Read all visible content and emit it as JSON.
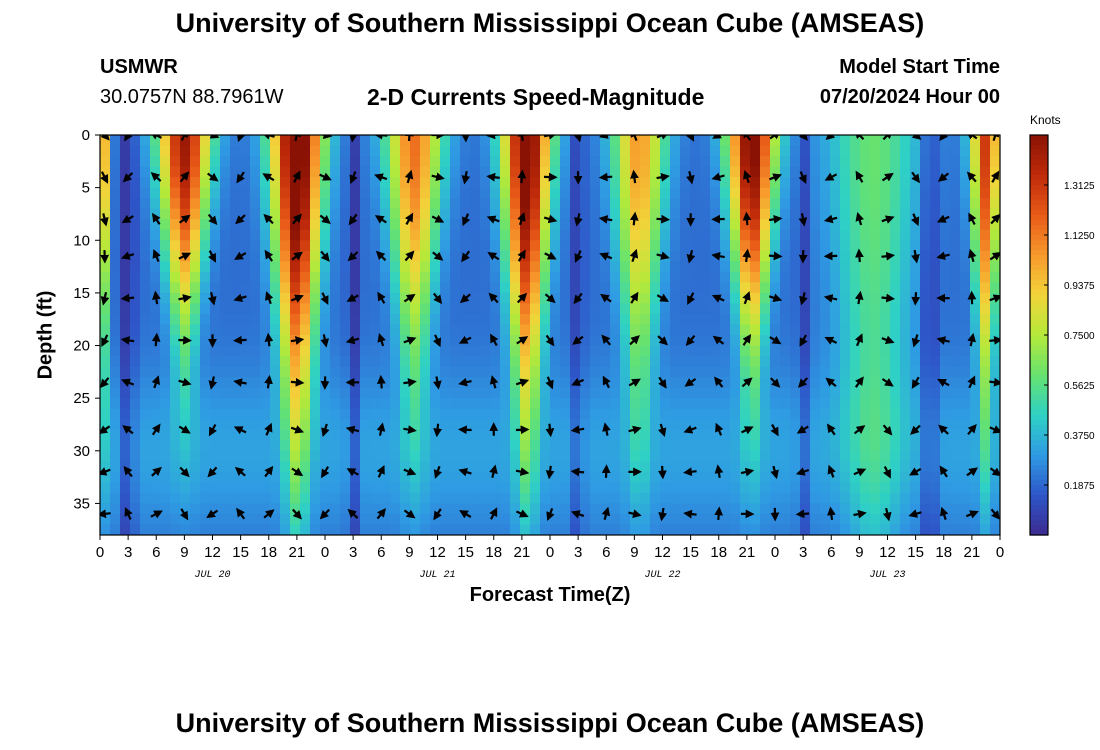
{
  "header": {
    "title": "University of Southern Mississippi Ocean Cube (AMSEAS)",
    "station": "USMWR",
    "coordinates": "30.0757N  88.7961W",
    "subtitle": "2-D Currents Speed-Magnitude",
    "model_start_label": "Model Start Time",
    "model_start_value": "07/20/2024 Hour 00"
  },
  "footer": {
    "title": "University of Southern Mississippi Ocean Cube (AMSEAS)"
  },
  "colors": {
    "arrow": "#000000",
    "palette": [
      "#3b2a8f",
      "#2e56c8",
      "#2f9be3",
      "#2fd1c4",
      "#67e26f",
      "#b5e93a",
      "#f2d43a",
      "#f7992c",
      "#e85a18",
      "#bf2a0a",
      "#8a1204"
    ]
  },
  "chart_data": {
    "type": "heatmap",
    "title": "2-D Currents Speed-Magnitude",
    "xlabel": "Forecast Time(Z)",
    "ylabel": "Depth (ft)",
    "x_tick_labels": [
      "0",
      "3",
      "6",
      "9",
      "12",
      "15",
      "18",
      "21",
      "0",
      "3",
      "6",
      "9",
      "12",
      "15",
      "18",
      "21",
      "0",
      "3",
      "6",
      "9",
      "12",
      "15",
      "18",
      "21",
      "0",
      "3",
      "6",
      "9",
      "12",
      "15",
      "18",
      "21",
      "0"
    ],
    "x_range_hours": [
      0,
      96
    ],
    "date_labels": [
      {
        "text": "JUL 20",
        "hour": 12
      },
      {
        "text": "JUL 21",
        "hour": 36
      },
      {
        "text": "JUL 22",
        "hour": 60
      },
      {
        "text": "JUL 23",
        "hour": 84
      }
    ],
    "y_tick_labels": [
      "0",
      "5",
      "10",
      "15",
      "20",
      "25",
      "30",
      "35"
    ],
    "y_ticks": [
      0,
      5,
      10,
      15,
      20,
      25,
      30,
      35
    ],
    "ylim": [
      0,
      38
    ],
    "colorbar": {
      "unit": "Knots",
      "range": [
        0,
        1.5
      ],
      "tick_values": [
        0.1875,
        0.375,
        0.5625,
        0.75,
        0.9375,
        1.125,
        1.3125
      ],
      "tick_labels": [
        "0.1875",
        "0.3750",
        "0.5625",
        "0.7500",
        "0.9375",
        "1.1250",
        "1.3125"
      ]
    },
    "peaks": [
      {
        "hour": 0.3,
        "amp": 0.85,
        "width": 0.7,
        "decay": 20
      },
      {
        "hour": 9,
        "amp": 1.25,
        "width": 2.8,
        "decay": 16
      },
      {
        "hour": 21,
        "amp": 1.45,
        "width": 2.8,
        "decay": 26
      },
      {
        "hour": 33.5,
        "amp": 0.95,
        "width": 3.0,
        "decay": 20
      },
      {
        "hour": 45.5,
        "amp": 1.4,
        "width": 2.6,
        "decay": 24
      },
      {
        "hour": 57.5,
        "amp": 0.85,
        "width": 2.8,
        "decay": 22
      },
      {
        "hour": 69.5,
        "amp": 1.35,
        "width": 2.6,
        "decay": 18
      },
      {
        "hour": 82.5,
        "amp": 0.4,
        "width": 5.0,
        "decay": 40
      },
      {
        "hour": 94.5,
        "amp": 1.1,
        "width": 1.6,
        "decay": 22
      }
    ],
    "lows": [
      {
        "hour": 3,
        "amp": 0.18,
        "width": 0.7
      },
      {
        "hour": 27,
        "amp": 0.16,
        "width": 0.6
      },
      {
        "hour": 51,
        "amp": 0.14,
        "width": 0.6
      },
      {
        "hour": 75,
        "amp": 0.13,
        "width": 0.6
      },
      {
        "hour": 88.5,
        "amp": 0.16,
        "width": 0.8
      }
    ],
    "arrow_hours": [
      0.5,
      3,
      6,
      9,
      12,
      15,
      18,
      21,
      24,
      27,
      30,
      33,
      36,
      39,
      42,
      45,
      48,
      51,
      54,
      57,
      60,
      63,
      66,
      69,
      72,
      75,
      78,
      81,
      84,
      87,
      90,
      93,
      95.5
    ],
    "arrow_depths": [
      0,
      4,
      8,
      11.5,
      15.5,
      19.5,
      23.5,
      28,
      32,
      36
    ]
  }
}
